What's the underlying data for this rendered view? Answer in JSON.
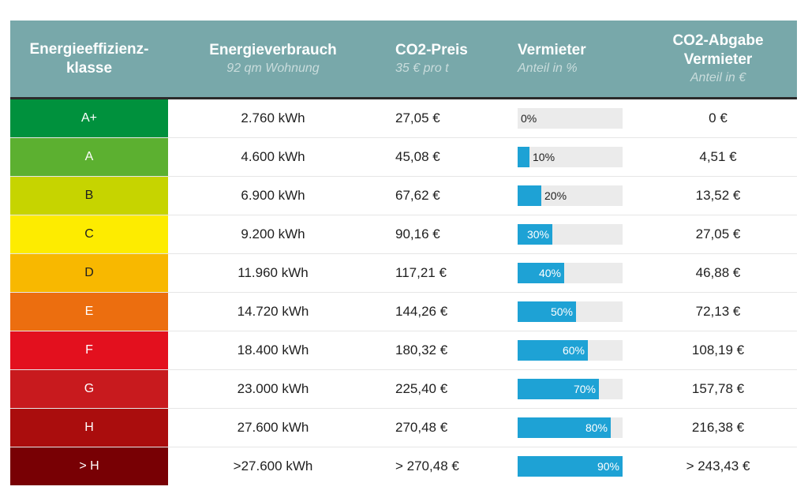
{
  "header": {
    "col1": "Energieeffizienz-\nklasse",
    "col2_title": "Energieverbrauch",
    "col2_sub": "92 qm Wohnung",
    "col3_title": "CO2-Preis",
    "col3_sub": "35 € pro t",
    "col4_title": "Vermieter",
    "col4_sub": "Anteil in %",
    "col5_title": "CO2-Abgabe\nVermieter",
    "col5_sub": "Anteil in €"
  },
  "colors": {
    "header_bg": "#78a8aa",
    "bar": "#1ea2d5",
    "bar_track": "#ebebeb"
  },
  "chart_data": {
    "type": "table",
    "rows": [
      {
        "class": "A+",
        "color": "#00913d",
        "text_color": "#ffffff",
        "consumption": "2.760 kWh",
        "price": "27,05 €",
        "share": 0,
        "share_label": "0%",
        "landlord": "0 €"
      },
      {
        "class": "A",
        "color": "#5cb030",
        "text_color": "#ffffff",
        "consumption": "4.600 kWh",
        "price": "45,08 €",
        "share": 10,
        "share_label": "10%",
        "landlord": "4,51 €"
      },
      {
        "class": "B",
        "color": "#c6d400",
        "text_color": "#1f1f1f",
        "consumption": "6.900 kWh",
        "price": "67,62 €",
        "share": 20,
        "share_label": "20%",
        "landlord": "13,52 €"
      },
      {
        "class": "C",
        "color": "#fdec00",
        "text_color": "#1f1f1f",
        "consumption": "9.200 kWh",
        "price": "90,16 €",
        "share": 30,
        "share_label": "30%",
        "landlord": "27,05 €"
      },
      {
        "class": "D",
        "color": "#f8b800",
        "text_color": "#1f1f1f",
        "consumption": "11.960 kWh",
        "price": "117,21 €",
        "share": 40,
        "share_label": "40%",
        "landlord": "46,88 €"
      },
      {
        "class": "E",
        "color": "#ec6e0f",
        "text_color": "#ffffff",
        "consumption": "14.720 kWh",
        "price": "144,26 €",
        "share": 50,
        "share_label": "50%",
        "landlord": "72,13 €"
      },
      {
        "class": "F",
        "color": "#e3101e",
        "text_color": "#ffffff",
        "consumption": "18.400 kWh",
        "price": "180,32 €",
        "share": 60,
        "share_label": "60%",
        "landlord": "108,19 €"
      },
      {
        "class": "G",
        "color": "#c81a1e",
        "text_color": "#ffffff",
        "consumption": "23.000 kWh",
        "price": "225,40 €",
        "share": 70,
        "share_label": "70%",
        "landlord": "157,78 €"
      },
      {
        "class": "H",
        "color": "#aa0d0d",
        "text_color": "#ffffff",
        "consumption": "27.600 kWh",
        "price": "270,48 €",
        "share": 80,
        "share_label": "80%",
        "landlord": "216,38 €"
      },
      {
        "class": "> H",
        "color": "#780004",
        "text_color": "#ffffff",
        "consumption": ">27.600 kWh",
        "price": "> 270,48 €",
        "share": 90,
        "share_label": "90%",
        "landlord": "> 243,43 €"
      }
    ]
  }
}
